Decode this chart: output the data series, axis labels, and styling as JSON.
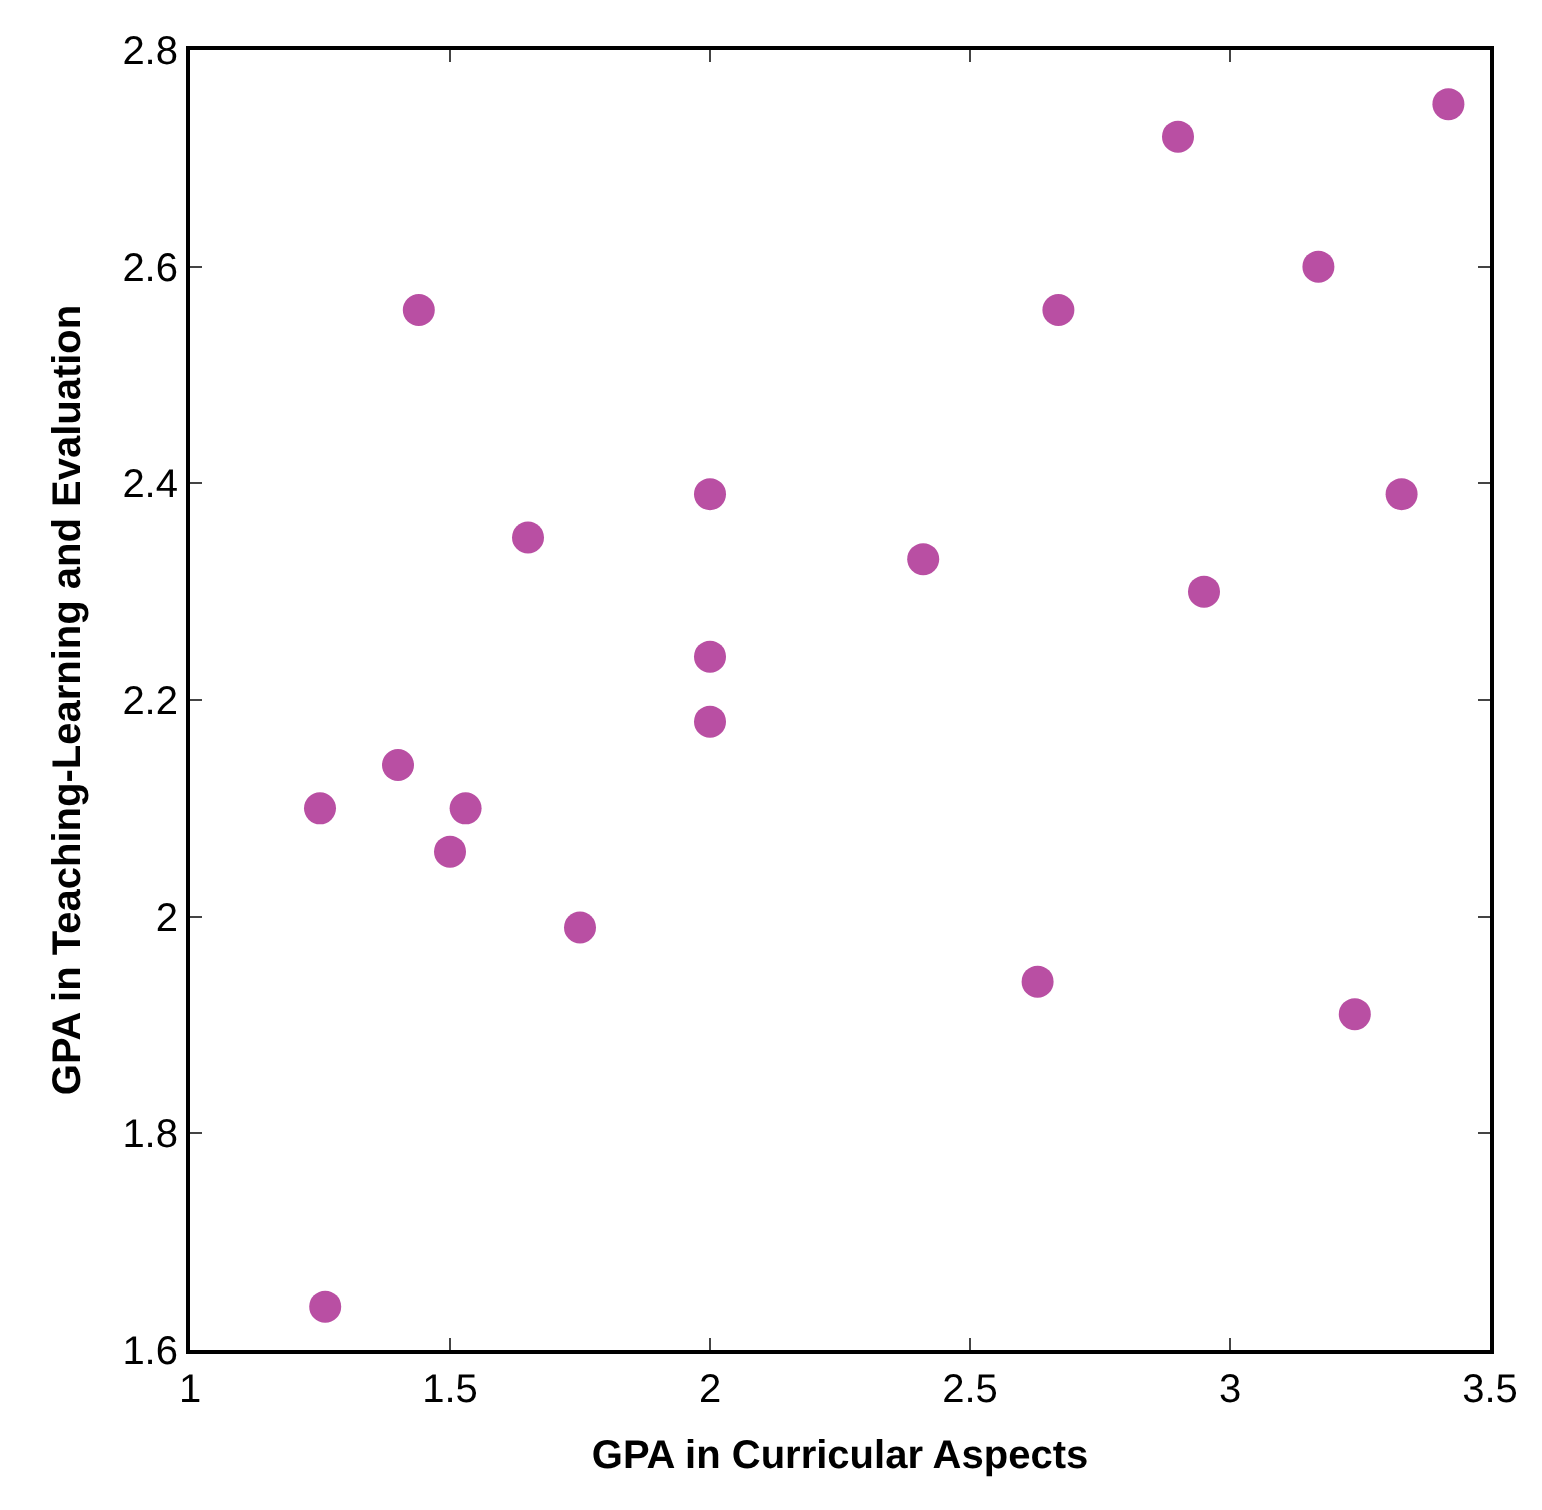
{
  "chart_data": {
    "type": "scatter",
    "xlabel": "GPA in Curricular Aspects",
    "ylabel": "GPA in Teaching-Learning and Evaluation",
    "series": [
      {
        "color": "#b94fa3",
        "x": [
          1.25,
          1.26,
          1.4,
          1.44,
          1.5,
          1.53,
          1.65,
          1.75,
          2.0,
          2.0,
          2.0,
          2.41,
          2.63,
          2.67,
          2.9,
          2.95,
          3.17,
          3.24,
          3.33,
          3.42
        ],
        "values": [
          2.1,
          1.64,
          2.14,
          2.56,
          2.06,
          2.1,
          2.35,
          1.99,
          2.39,
          2.24,
          2.18,
          2.33,
          1.94,
          2.56,
          2.72,
          2.3,
          2.6,
          1.91,
          2.39,
          2.75
        ]
      }
    ],
    "xlim": [
      1,
      3.5
    ],
    "xticks": [
      1,
      1.5,
      2,
      2.5,
      3,
      3.5
    ],
    "ylim": [
      1.6,
      2.8
    ],
    "yticks": [
      1.6,
      1.8,
      2,
      2.2,
      2.4,
      2.6,
      2.8
    ],
    "marker": "circle"
  }
}
